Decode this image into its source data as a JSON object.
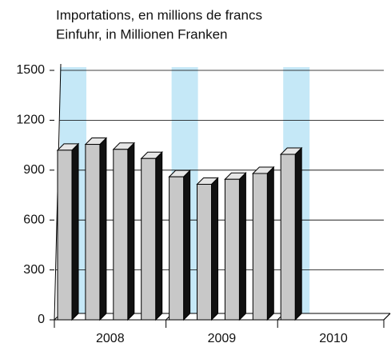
{
  "chart_data": {
    "type": "bar3d",
    "title": "Importations, en millions de francs",
    "subtitle": "Einfuhr, in Millionen Franken",
    "categories": [
      null,
      null,
      null,
      null,
      null,
      null,
      null,
      null,
      null
    ],
    "groups": [
      "2008",
      "2009",
      "2010"
    ],
    "values": [
      1020,
      1055,
      1025,
      970,
      860,
      815,
      845,
      880,
      995
    ],
    "color": "#c8c8c8",
    "ylim": [
      0,
      1500
    ],
    "yticks": [
      0,
      300,
      600,
      900,
      1200,
      1500
    ],
    "grid": true
  }
}
